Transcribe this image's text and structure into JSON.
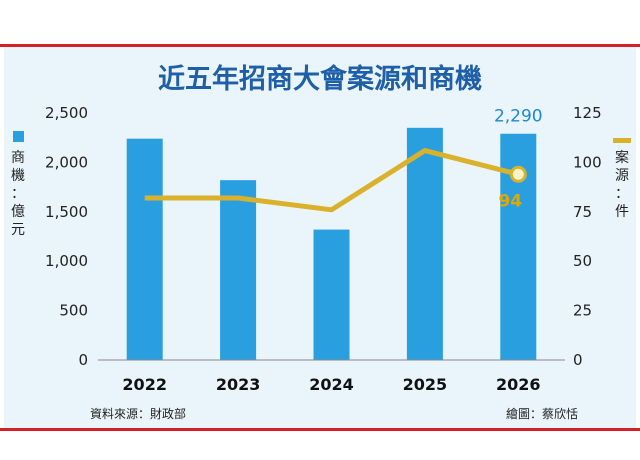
{
  "chart_data": {
    "type": "bar+line",
    "title": "近五年招商大會案源和商機",
    "categories": [
      "2022",
      "2023",
      "2024",
      "2025",
      "2026"
    ],
    "series": [
      {
        "name": "商機：億元",
        "type": "bar",
        "axis": "left",
        "color": "#2a9fe0",
        "values": [
          2240,
          1820,
          1320,
          2350,
          2290
        ]
      },
      {
        "name": "案源：件",
        "type": "line",
        "axis": "right",
        "color": "#d9b12a",
        "values": [
          82,
          82,
          76,
          106,
          94
        ]
      }
    ],
    "left_axis": {
      "label": "商機：億元",
      "ylim": [
        0,
        2500
      ],
      "ticks": [
        "0",
        "500",
        "1,000",
        "1,500",
        "2,000",
        "2,500"
      ]
    },
    "right_axis": {
      "label": "案源：件",
      "ylim": [
        0,
        125
      ],
      "ticks": [
        "0",
        "25",
        "50",
        "75",
        "100",
        "125"
      ]
    },
    "annotations": [
      {
        "text": "2,290",
        "series": "商機：億元",
        "category": "2026"
      },
      {
        "text": "94",
        "series": "案源：件",
        "category": "2026"
      }
    ],
    "grid": false
  },
  "footer": {
    "source": "資料來源：財政部",
    "credit": "繪圖：蔡欣恬"
  }
}
